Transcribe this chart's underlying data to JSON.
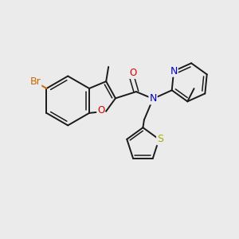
{
  "bg_color": "#ebebeb",
  "bond_color": "#1a1a1a",
  "atom_colors": {
    "Br": "#cc6600",
    "O": "#dd0000",
    "N": "#0000cc",
    "S": "#aaaa00",
    "C": "#1a1a1a"
  },
  "lw": 1.4,
  "lw2": 1.1
}
